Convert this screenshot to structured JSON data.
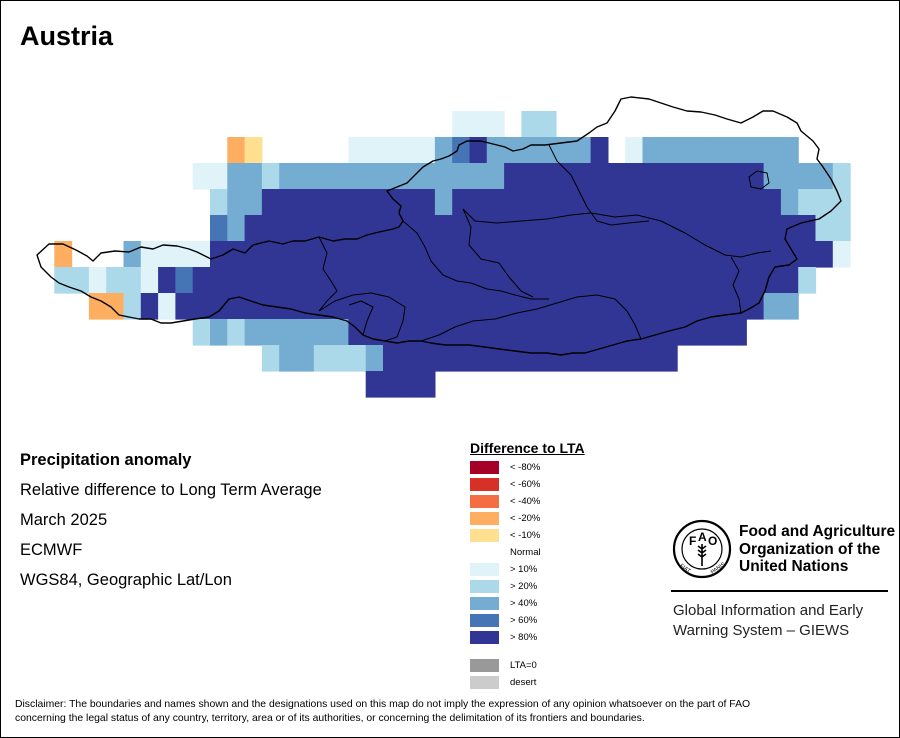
{
  "map": {
    "title": "Austria",
    "colors": {
      "n80": "#a50026",
      "n60": "#d73027",
      "n40": "#f46d43",
      "n20": "#fdae61",
      "n10": "#fee090",
      "p10": "#e0f3f8",
      "p20": "#abd9e9",
      "p40": "#74add1",
      "p60": "#4575b4",
      "p80": "#313695",
      "lta0": "#999999",
      "desert": "#cccccc"
    },
    "grid_rows": [
      "...............................................",
      "........................EEE.BB.................",
      "...........ST.....EEEEEPHDPPPPPPD.EPPPPPPPPP...",
      ".........EEPPBPPPPPPPPPPPPPDDDDDDDDDDDDDDDPPPPB.",
      "..........BPPDDDDDDDDDDPDDDDDDDDDDDDDDDDDDDPBBB.",
      "..........HPDDDDDDDDDDDDDDDDDDDDDDDDDDDDDDDDDBB.",
      ".S...PEEEEDDDDDDDDDDDDDDDDDDDDDDDDDDDDDDDDDDDDE..",
      ".BBEBBEDHDDDDDDDDDDDDDDDDDDDDDDDDDDDDDDDDDDDB...",
      "...SSBDEDDDDDDDDDDDDDDDDDDDDDDDDDDDDDDDDDDPP....",
      ".........BPBPPPPPPDDDDDDDDDDDDDDDDDDDDDDD.......",
      ".............BPPBBBPDDDDDDDDDDDDDDDDD..........",
      "...................DDDD........................",
      "..............................................."
    ],
    "grid_legend": {
      ".": "none",
      "E": "p10",
      "B": "p20",
      "P": "p40",
      "H": "p60",
      "D": "p80",
      "S": "n20",
      "T": "n10"
    }
  },
  "metadata": {
    "line1": "Precipitation anomaly",
    "line2": "Relative difference to Long Term Average",
    "line3": "March 2025",
    "line4": "ECMWF",
    "line5": "WGS84, Geographic Lat/Lon"
  },
  "legend": {
    "title": "Difference to LTA",
    "items": [
      {
        "label": "< -80%",
        "color": "#a50026"
      },
      {
        "label": "< -60%",
        "color": "#d73027"
      },
      {
        "label": "< -40%",
        "color": "#f46d43"
      },
      {
        "label": "< -20%",
        "color": "#fdae61"
      },
      {
        "label": "< -10%",
        "color": "#fee090"
      }
    ],
    "normal_label": "Normal",
    "items_positive": [
      {
        "label": "> 10%",
        "color": "#e0f3f8"
      },
      {
        "label": "> 20%",
        "color": "#abd9e9"
      },
      {
        "label": "> 40%",
        "color": "#74add1"
      },
      {
        "label": "> 60%",
        "color": "#4575b4"
      },
      {
        "label": "> 80%",
        "color": "#313695"
      }
    ],
    "items_other": [
      {
        "label": "LTA=0",
        "color": "#999999"
      },
      {
        "label": "desert",
        "color": "#cccccc"
      }
    ]
  },
  "branding": {
    "logo_text": "FAO",
    "logo_motto": "FIAT PANIS",
    "org_line1": "Food and Agriculture",
    "org_line2": "Organization of the",
    "org_line3": "United Nations",
    "system_line1": "Global Information and Early",
    "system_line2": "Warning System – GIEWS"
  },
  "disclaimer": {
    "line1": "Disclaimer: The boundaries and names shown and the designations used on this map do not imply the expression of any opinion whatsoever on the part of FAO",
    "line2": "concerning the legal status of any country, territory, area or of its authorities, or concerning the delimitation of its frontiers and boundaries."
  }
}
